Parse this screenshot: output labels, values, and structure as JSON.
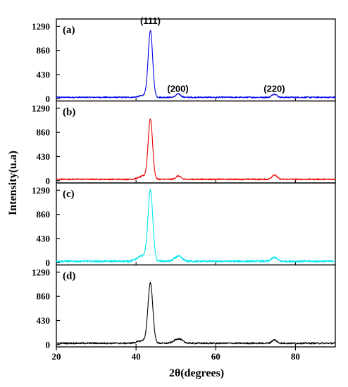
{
  "chart_data": {
    "type": "line",
    "xlabel": "2θ(degrees)",
    "ylabel": "Intensity(u.a)",
    "xlim": [
      20,
      90
    ],
    "xticks": [
      20,
      40,
      60,
      80
    ],
    "ylim": [
      -40,
      1420
    ],
    "yticks": [
      0,
      430,
      860,
      1290
    ],
    "grid": false,
    "annotations": [
      {
        "text": "(111)",
        "x": 43.6,
        "y": 1330
      },
      {
        "text": "(200)",
        "x": 50.5,
        "y": 120
      },
      {
        "text": "(220)",
        "x": 74.7,
        "y": 120
      }
    ],
    "panels": [
      {
        "label": "(a)",
        "color": "#0000ee",
        "noise": 12,
        "peaks": [
          {
            "center": 43.6,
            "height": 1170,
            "width": 0.55
          },
          {
            "center": 42.2,
            "height": 40,
            "width": 1.2
          },
          {
            "center": 50.6,
            "height": 60,
            "width": 0.6
          },
          {
            "center": 74.7,
            "height": 60,
            "width": 0.6
          }
        ]
      },
      {
        "label": "(b)",
        "color": "#ee0000",
        "noise": 12,
        "peaks": [
          {
            "center": 43.6,
            "height": 1050,
            "width": 0.55
          },
          {
            "center": 42.0,
            "height": 60,
            "width": 1.2
          },
          {
            "center": 50.6,
            "height": 60,
            "width": 0.6
          },
          {
            "center": 74.7,
            "height": 80,
            "width": 0.6
          }
        ]
      },
      {
        "label": "(c)",
        "color": "#00e5ee",
        "noise": 18,
        "peaks": [
          {
            "center": 43.6,
            "height": 1220,
            "width": 0.6
          },
          {
            "center": 41.8,
            "height": 100,
            "width": 1.4
          },
          {
            "center": 50.6,
            "height": 90,
            "width": 0.9
          },
          {
            "center": 74.7,
            "height": 70,
            "width": 0.7
          }
        ]
      },
      {
        "label": "(d)",
        "color": "#000000",
        "noise": 14,
        "peaks": [
          {
            "center": 43.6,
            "height": 1060,
            "width": 0.6
          },
          {
            "center": 41.8,
            "height": 50,
            "width": 1.3
          },
          {
            "center": 50.6,
            "height": 80,
            "width": 1.0
          },
          {
            "center": 74.7,
            "height": 60,
            "width": 0.6
          }
        ]
      }
    ]
  }
}
